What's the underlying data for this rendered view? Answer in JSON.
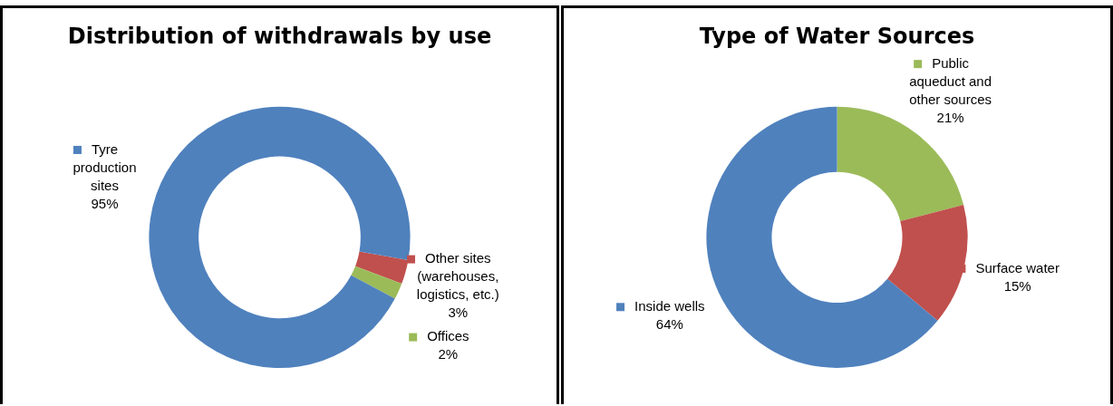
{
  "chart_data": [
    {
      "type": "donut",
      "title": "Distribution of withdrawals by use",
      "categories": [
        "Other sites (warehouses, logistics, etc.)",
        "Offices",
        "Tyre production sites"
      ],
      "values": [
        3,
        2,
        95
      ],
      "colors": [
        "#c0504d",
        "#9bbb59",
        "#4f81bd"
      ],
      "value_labels": [
        "3%",
        "2%",
        "95%"
      ],
      "legend": "right"
    },
    {
      "type": "donut",
      "title": "Type of Water Sources",
      "categories": [
        "Public aqueduct and other sources",
        "Surface water",
        "Inside wells"
      ],
      "values": [
        21,
        15,
        64
      ],
      "colors": [
        "#9bbb59",
        "#c0504d",
        "#4f81bd"
      ],
      "value_labels": [
        "21%",
        "15%",
        "64%"
      ],
      "legend": "right"
    }
  ]
}
